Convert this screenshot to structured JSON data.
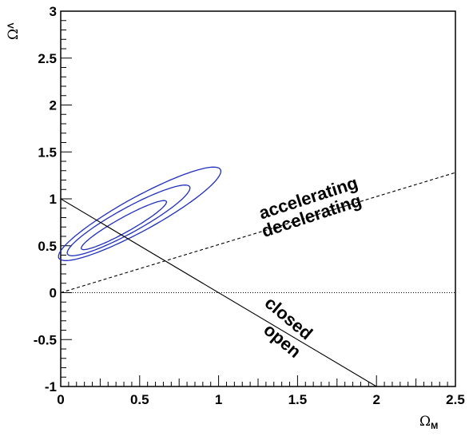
{
  "chart_data": {
    "type": "line",
    "title": "",
    "xlabel": "Ω",
    "xlabel_sub": "M",
    "ylabel": "Ω",
    "ylabel_sub": "Λ",
    "xlim": [
      0,
      2.5
    ],
    "ylim": [
      -1,
      3
    ],
    "x_ticks": [
      "0",
      "0.5",
      "1",
      "1.5",
      "2",
      "2.5"
    ],
    "y_ticks": [
      "-1",
      "-0.5",
      "0",
      "0.5",
      "1",
      "1.5",
      "2",
      "2.5",
      "3"
    ],
    "grid": false,
    "legend": "none",
    "series": [
      {
        "style": "solid",
        "color": "#000000",
        "x": [
          0,
          2
        ],
        "y": [
          1,
          -1
        ]
      },
      {
        "style": "dashed",
        "color": "#000000",
        "x": [
          0,
          2.5
        ],
        "y": [
          0,
          1.28
        ]
      },
      {
        "style": "dotted",
        "color": "#000000",
        "x": [
          0,
          2.5
        ],
        "y": [
          0,
          0
        ]
      }
    ],
    "contours": [
      {
        "color": "#1f2fbf",
        "center": [
          0.4,
          0.72
        ],
        "semi_axes": [
          0.37,
          0.065
        ],
        "angle_deg": 44
      },
      {
        "color": "#1f2fbf",
        "center": [
          0.43,
          0.77
        ],
        "semi_axes": [
          0.53,
          0.11
        ],
        "angle_deg": 44
      },
      {
        "color": "#1f2fbf",
        "center": [
          0.5,
          0.84
        ],
        "semi_axes": [
          0.7,
          0.15
        ],
        "angle_deg": 44
      }
    ],
    "annotations": [
      {
        "text": "accelerating",
        "x": 1.58,
        "y": 0.95,
        "angle_deg": -18
      },
      {
        "text": "decelerating",
        "x": 1.6,
        "y": 0.76,
        "angle_deg": -18
      },
      {
        "text": "closed",
        "x": 1.42,
        "y": -0.32,
        "angle_deg": 40
      },
      {
        "text": "open",
        "x": 1.38,
        "y": -0.56,
        "angle_deg": 40
      }
    ]
  }
}
